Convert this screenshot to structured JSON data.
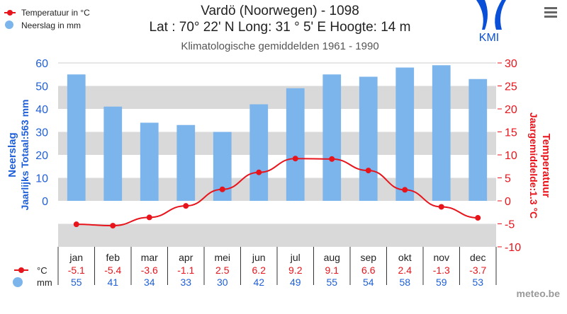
{
  "header": {
    "title": "Vardö (Noorwegen) - 1098",
    "subtitle": "Lat : 70° 22' N Long: 31 ° 5' E Hoogte: 14 m",
    "period": "Klimatologische gemiddelden 1961 - 1990",
    "logo_text": "KMI",
    "menu_icon": "hamburger-menu-icon",
    "credit": "meteo.be"
  },
  "legend": {
    "temperature": "Temperatuur in °C",
    "precipitation": "Neerslag in mm",
    "temp_unit": "°C",
    "precip_unit": "mm"
  },
  "colors": {
    "temperature": "#e8141c",
    "precipitation": "#7cb5ec",
    "left_axis": "#1f5fd8",
    "band": "#d9d9d9"
  },
  "chart_data": {
    "type": "bar+line",
    "categories": [
      "jan",
      "feb",
      "mar",
      "apr",
      "mei",
      "jun",
      "jul",
      "aug",
      "sep",
      "okt",
      "nov",
      "dec"
    ],
    "series": [
      {
        "name": "Neerslag in mm",
        "type": "bar",
        "axis": "left",
        "values": [
          55,
          41,
          34,
          33,
          30,
          42,
          49,
          55,
          54,
          58,
          59,
          53
        ]
      },
      {
        "name": "Temperatuur in °C",
        "type": "line",
        "axis": "right",
        "values": [
          -5.1,
          -5.4,
          -3.6,
          -1.1,
          2.5,
          6.2,
          9.2,
          9.1,
          6.6,
          2.4,
          -1.3,
          -3.7
        ]
      }
    ],
    "left_axis": {
      "label": "Neerslag",
      "label2": "Jaarlijks Totaal:563 mm",
      "ticks": [
        0,
        10,
        20,
        30,
        40,
        50,
        60
      ],
      "range": [
        -20,
        60
      ]
    },
    "right_axis": {
      "label": "Temperatuur",
      "label2": "Jaargemiddelde:1.3 °C",
      "ticks": [
        -10,
        -5,
        0,
        5,
        10,
        15,
        20,
        25,
        30
      ],
      "range": [
        -10,
        30
      ]
    },
    "grid": "alternating bands"
  }
}
